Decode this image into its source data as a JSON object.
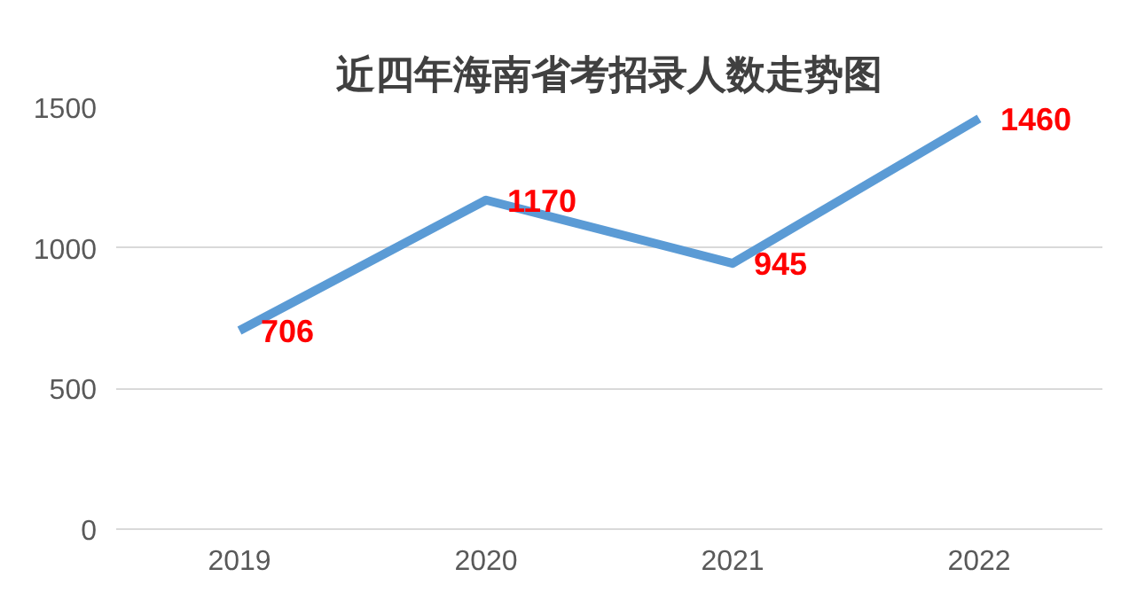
{
  "chart_data": {
    "type": "line",
    "title": "近四年海南省考招录人数走势图",
    "categories": [
      "2019",
      "2020",
      "2021",
      "2022"
    ],
    "series": [
      {
        "color": "#5b9bd5",
        "values": [
          706,
          1170,
          945,
          1460
        ]
      }
    ],
    "ylim": [
      0,
      1500
    ],
    "yticks": [
      0,
      500,
      1000,
      1500
    ],
    "grid": "y",
    "data_labels": true,
    "marker": "none",
    "line_style": "solid"
  }
}
